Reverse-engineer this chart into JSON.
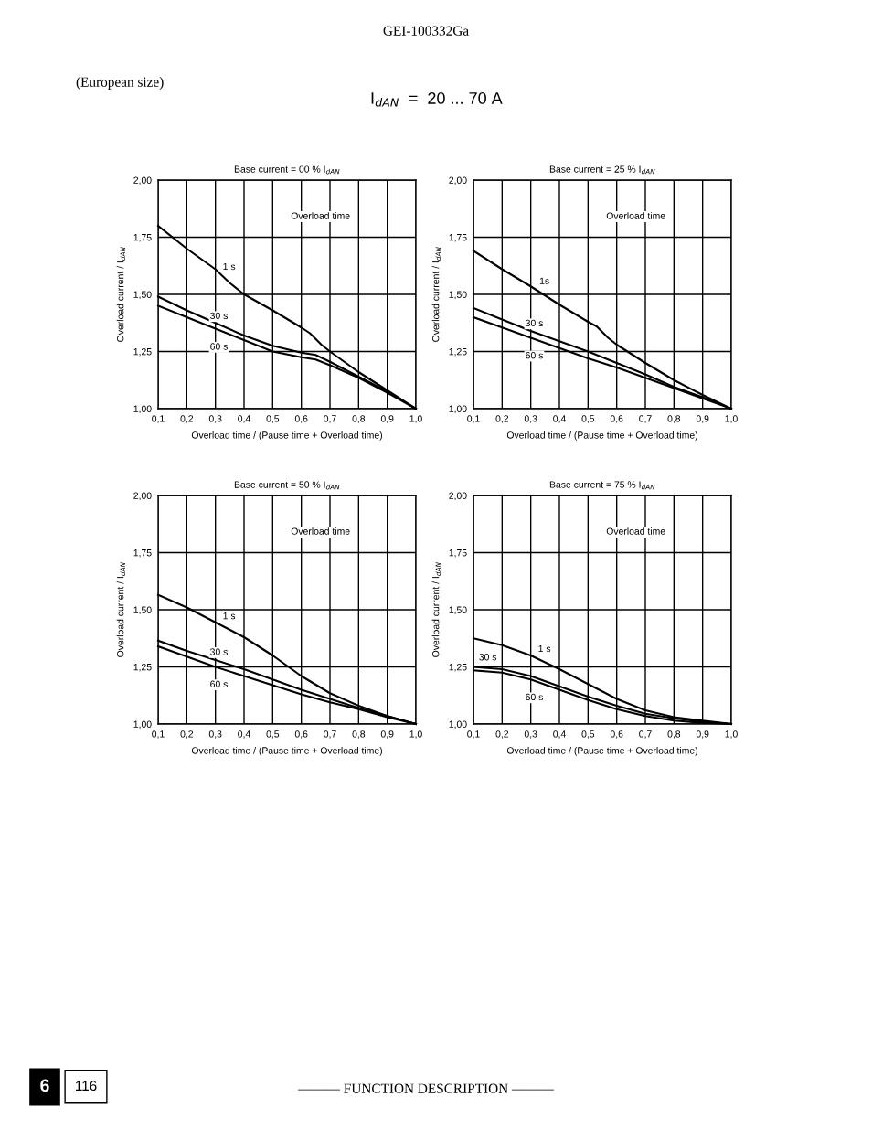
{
  "chart_data": [
    {
      "type": "line",
      "title": "Base current = 00 % I$_{dAN}$",
      "xlabel": "Overload time / (Pause time + Overload time)",
      "ylabel": "Overload current / I$_{dAN}$",
      "annotations": [
        "Overload time",
        "GEI-100332Ga",
        "(European size)",
        "I$_{dAN}$  =  20 ... 70 A",
        "6",
        "116",
        "——— FUNCTION DESCRIPTION ———"
      ],
      "xlim": [
        0.1,
        1.0
      ],
      "ylim": [
        1.0,
        2.0
      ],
      "xticks": [
        {
          "value": 0.1,
          "label": "0,1"
        },
        {
          "value": 0.2,
          "label": "0,2"
        },
        {
          "value": 0.3,
          "label": "0,3"
        },
        {
          "value": 0.4,
          "label": "0,4"
        },
        {
          "value": 0.5,
          "label": "0,5"
        },
        {
          "value": 0.6,
          "label": "0,6"
        },
        {
          "value": 0.7,
          "label": "0,7"
        },
        {
          "value": 0.8,
          "label": "0,8"
        },
        {
          "value": 0.9,
          "label": "0,9"
        },
        {
          "value": 1.0,
          "label": "1,0"
        }
      ],
      "yticks": [
        {
          "value": 1.0,
          "label": "1,00"
        },
        {
          "value": 1.25,
          "label": "1,25"
        },
        {
          "value": 1.5,
          "label": "1,50"
        },
        {
          "value": 1.75,
          "label": "1,75"
        },
        {
          "value": 2.0,
          "label": "2,00"
        }
      ],
      "grid": true,
      "legend": false,
      "series": [
        {
          "name": "1 s",
          "color": "#000000",
          "x": [
            0.1,
            0.2,
            0.3,
            0.35,
            0.4,
            0.5,
            0.6,
            0.63,
            0.67,
            0.7,
            0.8,
            0.9,
            1.0
          ],
          "values": [
            1.8,
            1.7,
            1.61,
            1.55,
            1.5,
            1.43,
            1.355,
            1.33,
            1.28,
            1.25,
            1.16,
            1.08,
            1.0
          ]
        },
        {
          "name": "30 s",
          "color": "#000000",
          "x": [
            0.1,
            0.2,
            0.3,
            0.4,
            0.5,
            0.6,
            0.65,
            0.7,
            0.8,
            0.9,
            1.0
          ],
          "values": [
            1.49,
            1.43,
            1.375,
            1.32,
            1.275,
            1.245,
            1.235,
            1.205,
            1.14,
            1.075,
            1.0
          ]
        },
        {
          "name": "60 s",
          "color": "#000000",
          "x": [
            0.1,
            0.2,
            0.3,
            0.4,
            0.5,
            0.6,
            0.65,
            0.7,
            0.8,
            0.9,
            1.0
          ],
          "values": [
            1.45,
            1.4,
            1.35,
            1.3,
            1.25,
            1.225,
            1.215,
            1.19,
            1.135,
            1.07,
            1.0
          ]
        }
      ]
    },
    {
      "type": "line",
      "title": "Base current = 25 % I$_{dAN}$",
      "xlabel": "Overload time / (Pause time + Overload time)",
      "ylabel": "Overload current / I$_{dAN}$",
      "annotations": [
        "Overload time"
      ],
      "xlim": [
        0.1,
        1.0
      ],
      "ylim": [
        1.0,
        2.0
      ],
      "xticks": [
        {
          "value": 0.1,
          "label": "0,1"
        },
        {
          "value": 0.2,
          "label": "0,2"
        },
        {
          "value": 0.3,
          "label": "0,3"
        },
        {
          "value": 0.4,
          "label": "0,4"
        },
        {
          "value": 0.5,
          "label": "0,5"
        },
        {
          "value": 0.6,
          "label": "0,6"
        },
        {
          "value": 0.7,
          "label": "0,7"
        },
        {
          "value": 0.8,
          "label": "0,8"
        },
        {
          "value": 0.9,
          "label": "0,9"
        },
        {
          "value": 1.0,
          "label": "1,0"
        }
      ],
      "yticks": [
        {
          "value": 1.0,
          "label": "1,00"
        },
        {
          "value": 1.25,
          "label": "1,25"
        },
        {
          "value": 1.5,
          "label": "1,50"
        },
        {
          "value": 1.75,
          "label": "1,75"
        },
        {
          "value": 2.0,
          "label": "2,00"
        }
      ],
      "grid": true,
      "legend": false,
      "series": [
        {
          "name": "1s",
          "color": "#000000",
          "x": [
            0.1,
            0.2,
            0.3,
            0.4,
            0.5,
            0.53,
            0.57,
            0.6,
            0.7,
            0.8,
            0.9,
            1.0
          ],
          "values": [
            1.69,
            1.61,
            1.535,
            1.455,
            1.38,
            1.36,
            1.31,
            1.28,
            1.2,
            1.125,
            1.06,
            1.0
          ]
        },
        {
          "name": "30 s",
          "color": "#000000",
          "x": [
            0.1,
            0.2,
            0.3,
            0.4,
            0.5,
            0.6,
            0.7,
            0.8,
            0.9,
            1.0
          ],
          "values": [
            1.44,
            1.39,
            1.34,
            1.295,
            1.25,
            1.2,
            1.15,
            1.095,
            1.05,
            1.0
          ]
        },
        {
          "name": "60 s",
          "color": "#000000",
          "x": [
            0.1,
            0.2,
            0.3,
            0.4,
            0.5,
            0.6,
            0.7,
            0.8,
            0.9,
            1.0
          ],
          "values": [
            1.4,
            1.355,
            1.31,
            1.265,
            1.22,
            1.18,
            1.135,
            1.09,
            1.045,
            1.0
          ]
        }
      ]
    },
    {
      "type": "line",
      "title": "Base current = 50 % I$_{dAN}$",
      "xlabel": "Overload time / (Pause time + Overload time)",
      "ylabel": "Overload current / I$_{dAN}$",
      "annotations": [
        "Overload time"
      ],
      "xlim": [
        0.1,
        1.0
      ],
      "ylim": [
        1.0,
        2.0
      ],
      "xticks": [
        {
          "value": 0.1,
          "label": "0,1"
        },
        {
          "value": 0.2,
          "label": "0,2"
        },
        {
          "value": 0.3,
          "label": "0,3"
        },
        {
          "value": 0.4,
          "label": "0,4"
        },
        {
          "value": 0.5,
          "label": "0,5"
        },
        {
          "value": 0.6,
          "label": "0,6"
        },
        {
          "value": 0.7,
          "label": "0,7"
        },
        {
          "value": 0.8,
          "label": "0,8"
        },
        {
          "value": 0.9,
          "label": "0,9"
        },
        {
          "value": 1.0,
          "label": "1,0"
        }
      ],
      "yticks": [
        {
          "value": 1.0,
          "label": "1,00"
        },
        {
          "value": 1.25,
          "label": "1,25"
        },
        {
          "value": 1.5,
          "label": "1,50"
        },
        {
          "value": 1.75,
          "label": "1,75"
        },
        {
          "value": 2.0,
          "label": "2,00"
        }
      ],
      "grid": true,
      "legend": false,
      "series": [
        {
          "name": "1 s",
          "color": "#000000",
          "x": [
            0.1,
            0.2,
            0.3,
            0.4,
            0.5,
            0.6,
            0.7,
            0.8,
            0.9,
            1.0
          ],
          "values": [
            1.565,
            1.51,
            1.445,
            1.38,
            1.3,
            1.21,
            1.135,
            1.08,
            1.035,
            1.0
          ]
        },
        {
          "name": "30 s",
          "color": "#000000",
          "x": [
            0.1,
            0.2,
            0.3,
            0.4,
            0.5,
            0.6,
            0.7,
            0.8,
            0.9,
            1.0
          ],
          "values": [
            1.365,
            1.32,
            1.28,
            1.24,
            1.195,
            1.15,
            1.11,
            1.07,
            1.035,
            1.0
          ]
        },
        {
          "name": "60 s",
          "color": "#000000",
          "x": [
            0.1,
            0.2,
            0.3,
            0.4,
            0.5,
            0.6,
            0.7,
            0.8,
            0.9,
            1.0
          ],
          "values": [
            1.34,
            1.295,
            1.25,
            1.21,
            1.17,
            1.13,
            1.095,
            1.065,
            1.03,
            1.0
          ]
        }
      ]
    },
    {
      "type": "line",
      "title": "Base current = 75 % I$_{dAN}$",
      "xlabel": "Overload time / (Pause time + Overload time)",
      "ylabel": "Overload current / I$_{dAN}$",
      "annotations": [
        "Overload time"
      ],
      "xlim": [
        0.1,
        1.0
      ],
      "ylim": [
        1.0,
        2.0
      ],
      "xticks": [
        {
          "value": 0.1,
          "label": "0,1"
        },
        {
          "value": 0.2,
          "label": "0,2"
        },
        {
          "value": 0.3,
          "label": "0,3"
        },
        {
          "value": 0.4,
          "label": "0,4"
        },
        {
          "value": 0.5,
          "label": "0,5"
        },
        {
          "value": 0.6,
          "label": "0,6"
        },
        {
          "value": 0.7,
          "label": "0,7"
        },
        {
          "value": 0.8,
          "label": "0,8"
        },
        {
          "value": 0.9,
          "label": "0,9"
        },
        {
          "value": 1.0,
          "label": "1,0"
        }
      ],
      "yticks": [
        {
          "value": 1.0,
          "label": "1,00"
        },
        {
          "value": 1.25,
          "label": "1,25"
        },
        {
          "value": 1.5,
          "label": "1,50"
        },
        {
          "value": 1.75,
          "label": "1,75"
        },
        {
          "value": 2.0,
          "label": "2,00"
        }
      ],
      "grid": true,
      "legend": false,
      "series": [
        {
          "name": "1 s",
          "color": "#000000",
          "x": [
            0.1,
            0.2,
            0.3,
            0.4,
            0.5,
            0.6,
            0.7,
            0.8,
            0.9,
            1.0
          ],
          "values": [
            1.375,
            1.345,
            1.3,
            1.24,
            1.175,
            1.11,
            1.06,
            1.03,
            1.015,
            1.0
          ]
        },
        {
          "name": "30 s",
          "color": "#000000",
          "x": [
            0.1,
            0.2,
            0.3,
            0.4,
            0.5,
            0.6,
            0.7,
            0.8,
            0.9,
            1.0
          ],
          "values": [
            1.25,
            1.24,
            1.21,
            1.165,
            1.12,
            1.08,
            1.045,
            1.025,
            1.01,
            1.0
          ]
        },
        {
          "name": "60 s",
          "color": "#000000",
          "x": [
            0.1,
            0.2,
            0.3,
            0.4,
            0.5,
            0.6,
            0.7,
            0.8,
            0.9,
            1.0
          ],
          "values": [
            1.235,
            1.225,
            1.195,
            1.15,
            1.105,
            1.065,
            1.035,
            1.015,
            1.005,
            1.0
          ]
        }
      ]
    }
  ]
}
